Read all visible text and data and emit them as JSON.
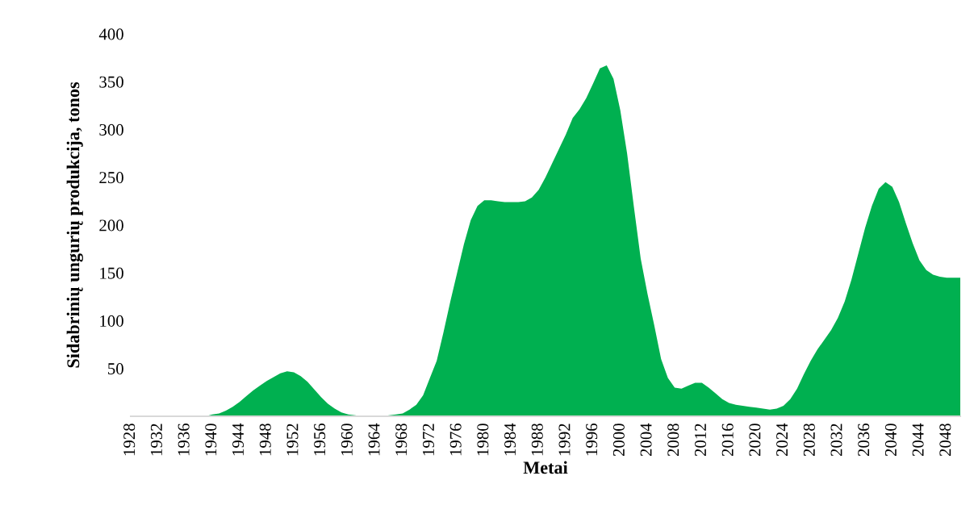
{
  "chart_data": {
    "type": "area",
    "ylabel": "Sidabrinių ungurių produkcija, tonos",
    "xlabel": "Metai",
    "x": [
      1928,
      1929,
      1930,
      1931,
      1932,
      1933,
      1934,
      1935,
      1936,
      1937,
      1938,
      1939,
      1940,
      1941,
      1942,
      1943,
      1944,
      1945,
      1946,
      1947,
      1948,
      1949,
      1950,
      1951,
      1952,
      1953,
      1954,
      1955,
      1956,
      1957,
      1958,
      1959,
      1960,
      1961,
      1962,
      1963,
      1964,
      1965,
      1966,
      1967,
      1968,
      1969,
      1970,
      1971,
      1972,
      1973,
      1974,
      1975,
      1976,
      1977,
      1978,
      1979,
      1980,
      1981,
      1982,
      1983,
      1984,
      1985,
      1986,
      1987,
      1988,
      1989,
      1990,
      1991,
      1992,
      1993,
      1994,
      1995,
      1996,
      1997,
      1998,
      1999,
      2000,
      2001,
      2002,
      2003,
      2004,
      2005,
      2006,
      2007,
      2008,
      2009,
      2010,
      2011,
      2012,
      2013,
      2014,
      2015,
      2016,
      2017,
      2018,
      2019,
      2020,
      2021,
      2022,
      2023,
      2024,
      2025,
      2026,
      2027,
      2028,
      2029,
      2030,
      2031,
      2032,
      2033,
      2034,
      2035,
      2036,
      2037,
      2038,
      2039,
      2040,
      2041,
      2042,
      2043,
      2044,
      2045,
      2046,
      2047,
      2048,
      2049,
      2050
    ],
    "series": [
      {
        "color": "#00b050",
        "values": [
          0,
          0,
          0,
          0,
          0,
          0,
          0,
          0,
          0,
          0,
          0,
          0,
          2,
          3,
          6,
          10,
          15,
          21,
          27,
          32,
          37,
          41,
          45,
          47,
          46,
          42,
          36,
          28,
          20,
          13,
          8,
          4,
          2,
          1,
          0,
          0,
          0,
          0,
          1,
          2,
          3,
          7,
          12,
          22,
          40,
          58,
          88,
          120,
          150,
          180,
          205,
          220,
          226,
          226,
          225,
          224,
          224,
          224,
          225,
          229,
          237,
          250,
          265,
          280,
          295,
          312,
          321,
          333,
          348,
          364,
          367,
          353,
          320,
          275,
          219,
          165,
          128,
          95,
          60,
          40,
          30,
          29,
          32,
          35,
          35,
          30,
          24,
          18,
          14,
          12,
          11,
          10,
          9,
          8,
          7,
          8,
          11,
          18,
          29,
          44,
          58,
          70,
          80,
          90,
          103,
          120,
          143,
          170,
          197,
          220,
          238,
          245,
          240,
          224,
          202,
          181,
          163,
          153,
          148,
          146,
          145,
          145,
          145
        ]
      }
    ],
    "xlim": [
      1928,
      2050
    ],
    "xticks": [
      1928,
      1932,
      1936,
      1940,
      1944,
      1948,
      1952,
      1956,
      1960,
      1964,
      1968,
      1972,
      1976,
      1980,
      1984,
      1988,
      1992,
      1996,
      2000,
      2004,
      2008,
      2012,
      2016,
      2020,
      2024,
      2028,
      2032,
      2036,
      2040,
      2044,
      2048
    ],
    "ylim": [
      0,
      400
    ],
    "yticks": [
      50,
      100,
      150,
      200,
      250,
      300,
      350,
      400
    ],
    "grid": false,
    "legend": false
  }
}
